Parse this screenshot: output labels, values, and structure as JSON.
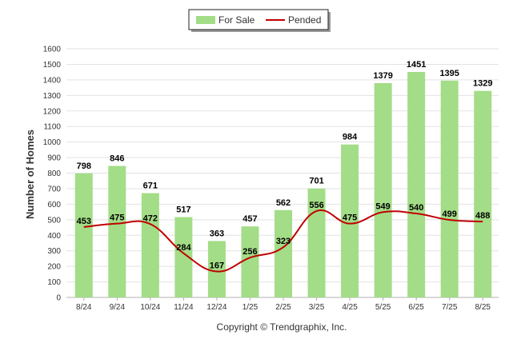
{
  "chart_data": {
    "type": "bar",
    "categories": [
      "8/24",
      "9/24",
      "10/24",
      "11/24",
      "12/24",
      "1/25",
      "2/25",
      "3/25",
      "4/25",
      "5/25",
      "6/25",
      "7/25",
      "8/25"
    ],
    "series": [
      {
        "name": "For Sale",
        "type": "bar",
        "color": "#a3dd87",
        "values": [
          798,
          846,
          671,
          517,
          363,
          457,
          562,
          701,
          984,
          1379,
          1451,
          1395,
          1329
        ]
      },
      {
        "name": "Pended",
        "type": "line",
        "color": "#c00000",
        "values": [
          453,
          475,
          472,
          284,
          167,
          256,
          323,
          556,
          475,
          549,
          540,
          499,
          488
        ]
      }
    ],
    "ylabel": "Number of Homes",
    "xlabel": "",
    "ylim": [
      0,
      1600
    ],
    "yticks": [
      0,
      100,
      200,
      300,
      400,
      500,
      600,
      700,
      800,
      900,
      1000,
      1100,
      1200,
      1300,
      1400,
      1500,
      1600
    ],
    "grid": true,
    "legend_position": "top-center"
  },
  "footer": {
    "copyright": "Copyright © Trendgraphix, Inc."
  }
}
